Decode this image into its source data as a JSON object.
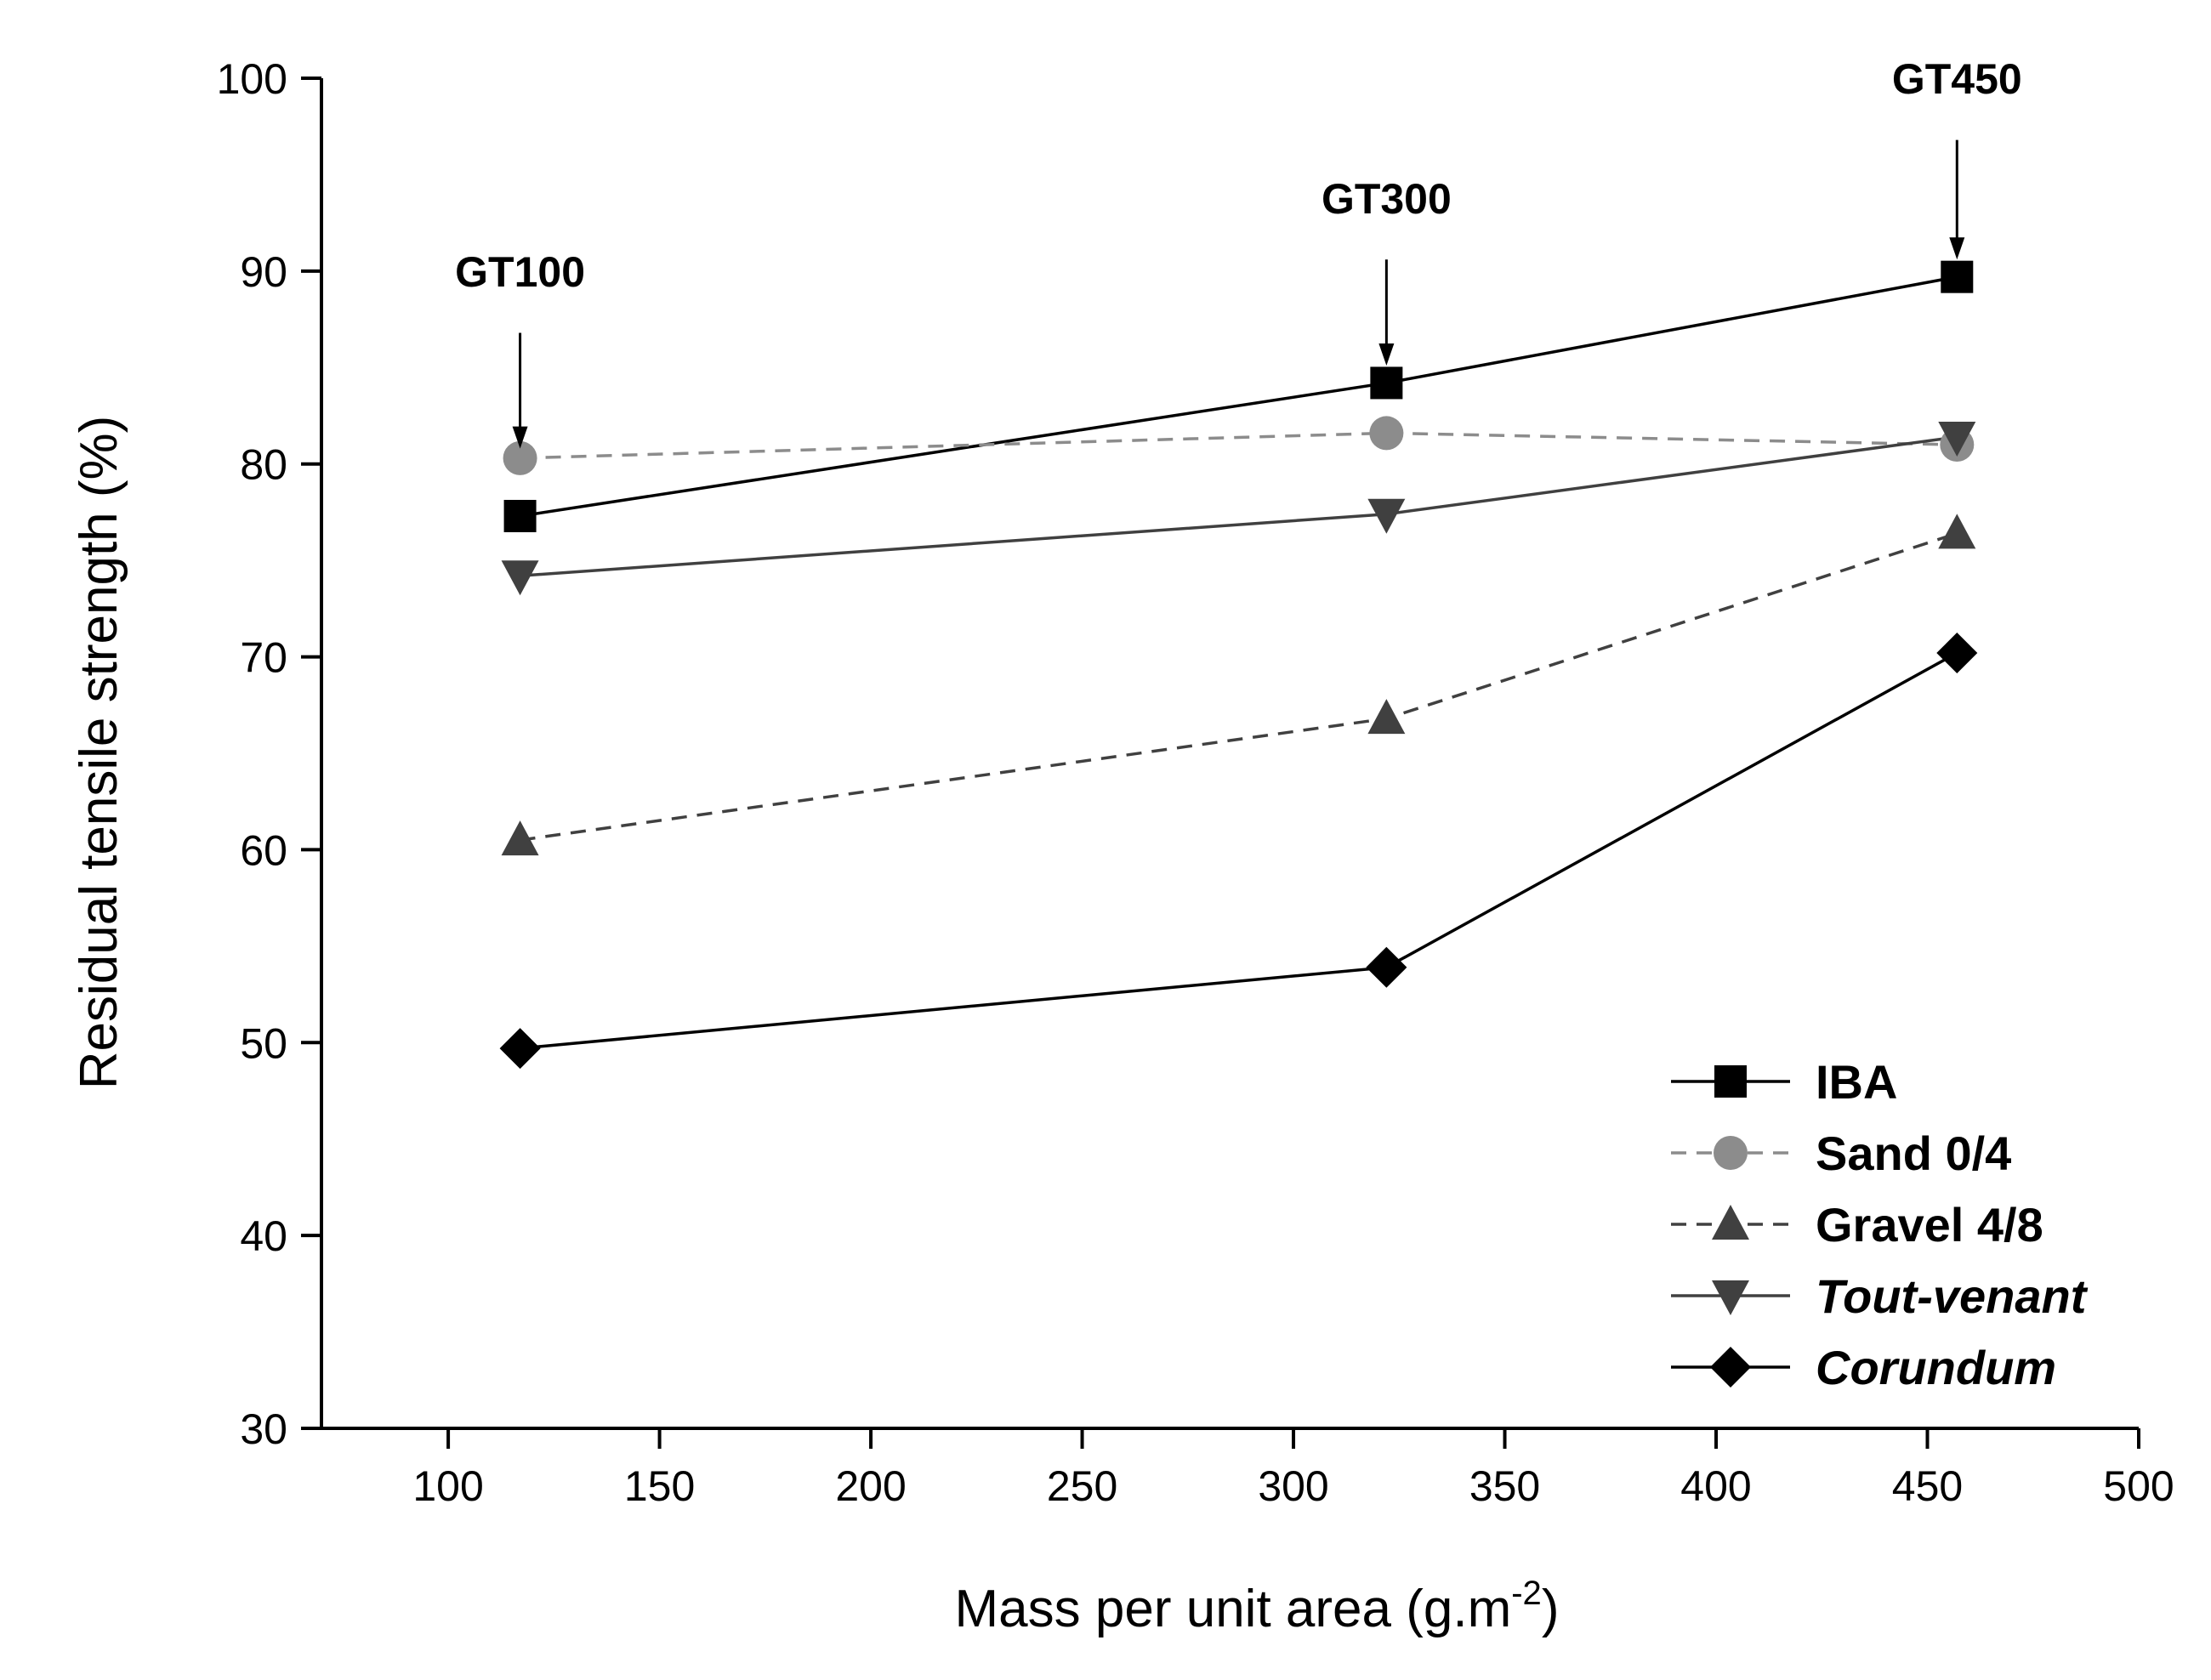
{
  "chart_data": {
    "type": "line",
    "title": "",
    "xlabel": "Mass per unit area (g.m",
    "xlabel_superscript": "-2",
    "xlabel_suffix": ")",
    "ylabel": "Residual tensile strength (%)",
    "xlim": [
      70,
      500
    ],
    "ylim": [
      30,
      100
    ],
    "xticks": [
      100,
      150,
      200,
      250,
      300,
      350,
      400,
      450,
      500
    ],
    "yticks": [
      30,
      40,
      50,
      60,
      70,
      80,
      90,
      100
    ],
    "grid": false,
    "legend_position": "bottom-right",
    "x": [
      117,
      322,
      457
    ],
    "series": [
      {
        "name": "IBA",
        "values": [
          77.3,
          84.2,
          89.7
        ],
        "marker": "square",
        "color": "#000000",
        "line": "solid",
        "italic": false
      },
      {
        "name": "Sand 0/4",
        "values": [
          80.3,
          81.6,
          81.0
        ],
        "marker": "circle",
        "color": "#8c8c8c",
        "line": "dashed",
        "italic": false
      },
      {
        "name": "Gravel 4/8",
        "values": [
          60.5,
          66.8,
          76.4
        ],
        "marker": "triangle-up",
        "color": "#404040",
        "line": "dashed",
        "italic": false
      },
      {
        "name": "Tout-venant",
        "values": [
          74.2,
          77.4,
          81.4
        ],
        "marker": "triangle-down",
        "color": "#404040",
        "line": "solid",
        "italic": true
      },
      {
        "name": "Corundum",
        "values": [
          49.7,
          53.9,
          70.2
        ],
        "marker": "diamond",
        "color": "#000000",
        "line": "solid",
        "italic": true
      }
    ],
    "annotations": [
      {
        "text": "GT100",
        "x": 117,
        "y_from": 86.8,
        "y_to": 80.8,
        "label_y": 89.2
      },
      {
        "text": "GT300",
        "x": 322,
        "y_from": 90.6,
        "y_to": 85.1,
        "label_y": 93.0
      },
      {
        "text": "GT450",
        "x": 457,
        "y_from": 96.8,
        "y_to": 90.6,
        "label_y": 99.2
      }
    ]
  }
}
